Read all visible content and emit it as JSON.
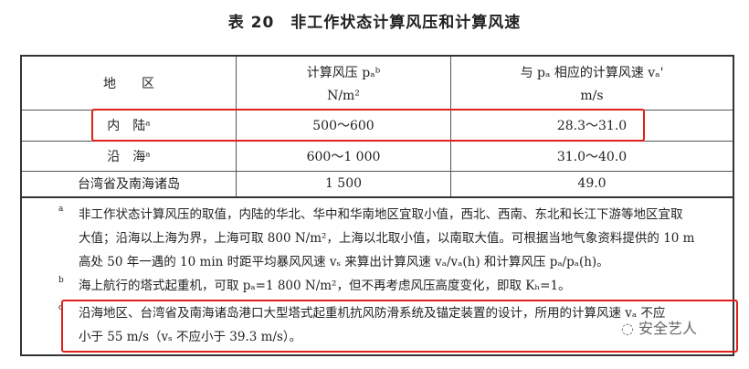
{
  "title": "表 20　非工作状态计算风压和计算风速",
  "header": {
    "region": "地　　区",
    "pressure": "计算风压 pₐᵇ",
    "pressure_unit": "N/m²",
    "speed": "与 pₐ 相应的计算风速 vₐ'",
    "speed_unit": "m/s"
  },
  "rows": [
    {
      "region": "内　陆ᵃ",
      "pressure": "500～600",
      "speed": "28.3～31.0"
    },
    {
      "region": "沿　海ᵃ",
      "pressure": "600～1 000",
      "speed": "31.0～40.0"
    },
    {
      "region": "台湾省及南海诸岛",
      "pressure": "1 500",
      "speed": "49.0"
    }
  ],
  "notes": [
    {
      "mark": "a",
      "lines": [
        "非工作状态计算风压的取值，内陆的华北、华中和华南地区宜取小值，西北、西南、东北和长江下游等地区宜取",
        "大值；沿海以上海为界，上海可取 800 N/m²，上海以北取小值，以南取大值。可根据当地气象资料提供的 10 m",
        "高处 50 年一遇的 10 min 时距平均暴风风速 vₛ 来算出计算风速 vₐ/vₐ(h) 和计算风压 pₐ/pₐ(h)。"
      ]
    },
    {
      "mark": "b",
      "lines": [
        "海上航行的塔式起重机，可取 pₐ=1 800 N/m²，但不再考虑风压高度变化，即取 Kₕ=1。"
      ]
    },
    {
      "mark": "c",
      "lines": [
        "沿海地区、台湾省及南海诸岛港口大型塔式起重机抗风防滑系统及锚定装置的设计，所用的计算风速 vₐ 不应",
        "小于 55 m/s（vₛ 不应小于 39.3 m/s）。"
      ]
    }
  ],
  "watermark": "安全艺人",
  "highlight_color": "#e0201a"
}
